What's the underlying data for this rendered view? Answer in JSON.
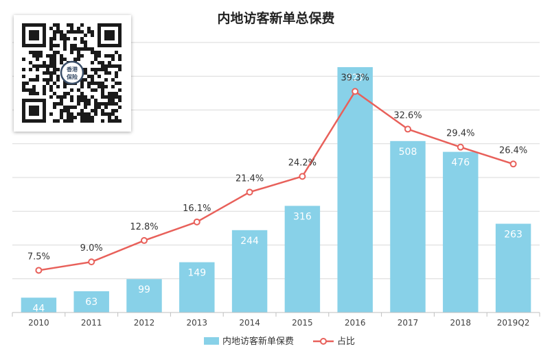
{
  "chart_data": {
    "type": "bar+line",
    "title": "内地访客新单总保费",
    "categories": [
      "2010",
      "2011",
      "2012",
      "2013",
      "2014",
      "2015",
      "2016",
      "2017",
      "2018",
      "2019Q2"
    ],
    "series": [
      {
        "name": "内地访客新单保费",
        "type": "bar",
        "color": "#88d1e8",
        "values": [
          44,
          63,
          99,
          149,
          244,
          316,
          727,
          508,
          476,
          263
        ]
      },
      {
        "name": "占比",
        "type": "line",
        "color": "#e8605a",
        "axis": "secondary",
        "values": [
          7.5,
          9.0,
          12.8,
          16.1,
          21.4,
          24.2,
          39.3,
          32.6,
          29.4,
          26.4
        ],
        "labels": [
          "7.5%",
          "9.0%",
          "12.8%",
          "16.1%",
          "21.4%",
          "24.2%",
          "39.3%",
          "32.6%",
          "29.4%",
          "26.4%"
        ]
      }
    ],
    "ylim": [
      0,
      800
    ],
    "y2lim": [
      0,
      48
    ],
    "grid": true,
    "legend": "bottom-center"
  },
  "colors": {
    "bar": "#88d1e8",
    "line": "#e8605a",
    "grid": "#d9d9d9",
    "axis_text": "#404040"
  },
  "icons": {
    "qr": "qr-code-icon",
    "logo": "香港保险"
  }
}
